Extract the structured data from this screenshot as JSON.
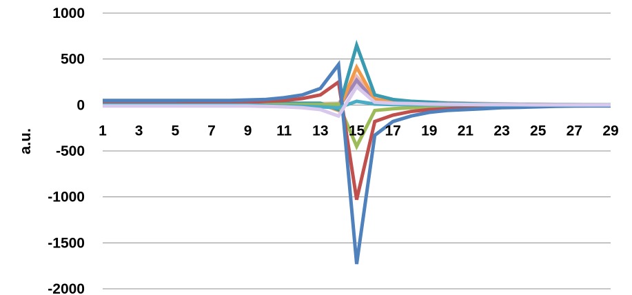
{
  "chart_data": {
    "type": "line",
    "ylabel": "a.u.",
    "ylim": [
      -2000,
      1000
    ],
    "yticks": [
      1000,
      500,
      0,
      -500,
      -1000,
      -1500,
      -2000
    ],
    "x": [
      1,
      2,
      3,
      4,
      5,
      6,
      7,
      8,
      9,
      10,
      11,
      12,
      13,
      14,
      15,
      16,
      17,
      18,
      19,
      20,
      21,
      22,
      23,
      24,
      25,
      26,
      27,
      28,
      29
    ],
    "xtick_labels": [
      "1",
      "3",
      "5",
      "7",
      "9",
      "11",
      "13",
      "15",
      "17",
      "19",
      "21",
      "23",
      "25",
      "27",
      "29"
    ],
    "grid": "horizontal",
    "legend": "none",
    "series": [
      {
        "color": "#d0c2c0",
        "values": [
          15,
          15,
          15,
          15,
          15,
          15,
          15,
          15,
          15,
          15,
          15,
          15,
          15,
          20,
          240,
          60,
          40,
          30,
          25,
          20,
          18,
          15,
          12,
          10,
          8,
          6,
          5,
          4,
          3
        ]
      },
      {
        "color": "#eab8b5",
        "values": [
          10,
          10,
          10,
          10,
          10,
          10,
          10,
          10,
          10,
          10,
          10,
          10,
          10,
          10,
          310,
          70,
          50,
          40,
          30,
          25,
          20,
          15,
          12,
          10,
          8,
          6,
          5,
          4,
          3
        ]
      },
      {
        "color": "#9e86b8",
        "values": [
          5,
          5,
          5,
          5,
          5,
          5,
          5,
          5,
          5,
          5,
          5,
          5,
          5,
          -30,
          270,
          40,
          30,
          20,
          15,
          10,
          8,
          6,
          5,
          4,
          3,
          2,
          2,
          1,
          1
        ]
      },
      {
        "color": "#f29a4a",
        "values": [
          10,
          10,
          10,
          10,
          10,
          10,
          10,
          10,
          10,
          10,
          10,
          10,
          10,
          -60,
          410,
          60,
          40,
          30,
          20,
          15,
          10,
          8,
          6,
          5,
          4,
          3,
          2,
          2,
          1
        ]
      },
      {
        "color": "#3a9bb0",
        "values": [
          20,
          20,
          20,
          20,
          20,
          20,
          20,
          20,
          20,
          20,
          20,
          20,
          20,
          -50,
          650,
          110,
          60,
          40,
          30,
          20,
          15,
          10,
          8,
          6,
          5,
          4,
          3,
          2,
          2
        ]
      },
      {
        "color": "#9dbb59",
        "values": [
          5,
          5,
          5,
          5,
          5,
          5,
          5,
          5,
          5,
          5,
          5,
          5,
          5,
          10,
          -450,
          -60,
          -40,
          -30,
          -20,
          -15,
          -10,
          -8,
          -6,
          -5,
          -4,
          -3,
          -2,
          -2,
          -1
        ]
      },
      {
        "color": "#c0504d",
        "values": [
          10,
          10,
          10,
          10,
          10,
          15,
          20,
          25,
          30,
          40,
          50,
          70,
          110,
          250,
          -1030,
          -180,
          -110,
          -70,
          -50,
          -40,
          -30,
          -20,
          -15,
          -10,
          -8,
          -5,
          -4,
          -3,
          -2
        ]
      },
      {
        "color": "#4f81bd",
        "values": [
          50,
          50,
          50,
          50,
          50,
          50,
          50,
          50,
          55,
          60,
          80,
          110,
          180,
          440,
          -1730,
          -330,
          -180,
          -120,
          -80,
          -60,
          -50,
          -40,
          -30,
          -25,
          -20,
          -15,
          -12,
          -10,
          -10
        ]
      },
      {
        "color": "#4bacc6",
        "values": [
          0,
          0,
          0,
          0,
          0,
          0,
          0,
          0,
          0,
          -5,
          -10,
          -15,
          -20,
          -30,
          40,
          10,
          5,
          3,
          2,
          1,
          1,
          0,
          0,
          0,
          0,
          0,
          0,
          0,
          0
        ]
      },
      {
        "color": "#d8c8ec",
        "values": [
          -10,
          -10,
          -10,
          -10,
          -10,
          -10,
          -10,
          -10,
          -10,
          -15,
          -20,
          -30,
          -50,
          -120,
          200,
          30,
          20,
          15,
          10,
          8,
          6,
          5,
          4,
          3,
          2,
          2,
          1,
          1,
          1
        ]
      }
    ]
  }
}
